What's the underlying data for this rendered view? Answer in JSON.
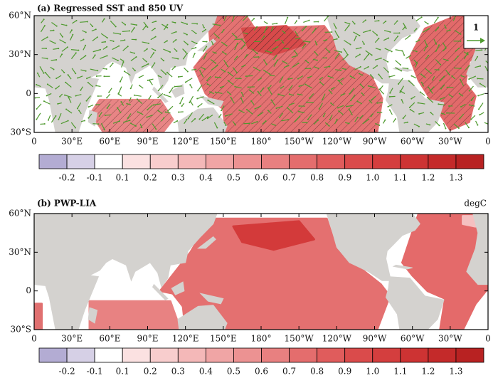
{
  "panels": [
    {
      "title": "(a) Regressed SST and 850 UV",
      "reference_vector": "1"
    },
    {
      "title": "(b) PWP-LIA",
      "units": "degC"
    }
  ],
  "x_labels": [
    "0",
    "30°E",
    "60°E",
    "90°E",
    "120°E",
    "150°E",
    "180°",
    "150°W",
    "120°W",
    "90°W",
    "60°W",
    "30°W",
    "0"
  ],
  "y_labels": [
    "60°N",
    "30°N",
    "0",
    "30°S"
  ],
  "colorbar": {
    "labels": [
      "-0.2",
      "-0.1",
      "0.1",
      "0.2",
      "0.3",
      "0.4",
      "0.5",
      "0.6",
      "0.7",
      "0.8",
      "0.9",
      "1.0",
      "1.1",
      "1.2",
      "1.3"
    ],
    "colors": [
      "#b3acd3",
      "#d6d0e6",
      "#ffffff",
      "#fbe1e1",
      "#f8cdcd",
      "#f4b8b8",
      "#f0a5a5",
      "#ec9292",
      "#e88080",
      "#e46d6d",
      "#e05c5c",
      "#da4b4b",
      "#d43e3e",
      "#cd3333",
      "#c42a2a",
      "#b82222"
    ]
  }
}
